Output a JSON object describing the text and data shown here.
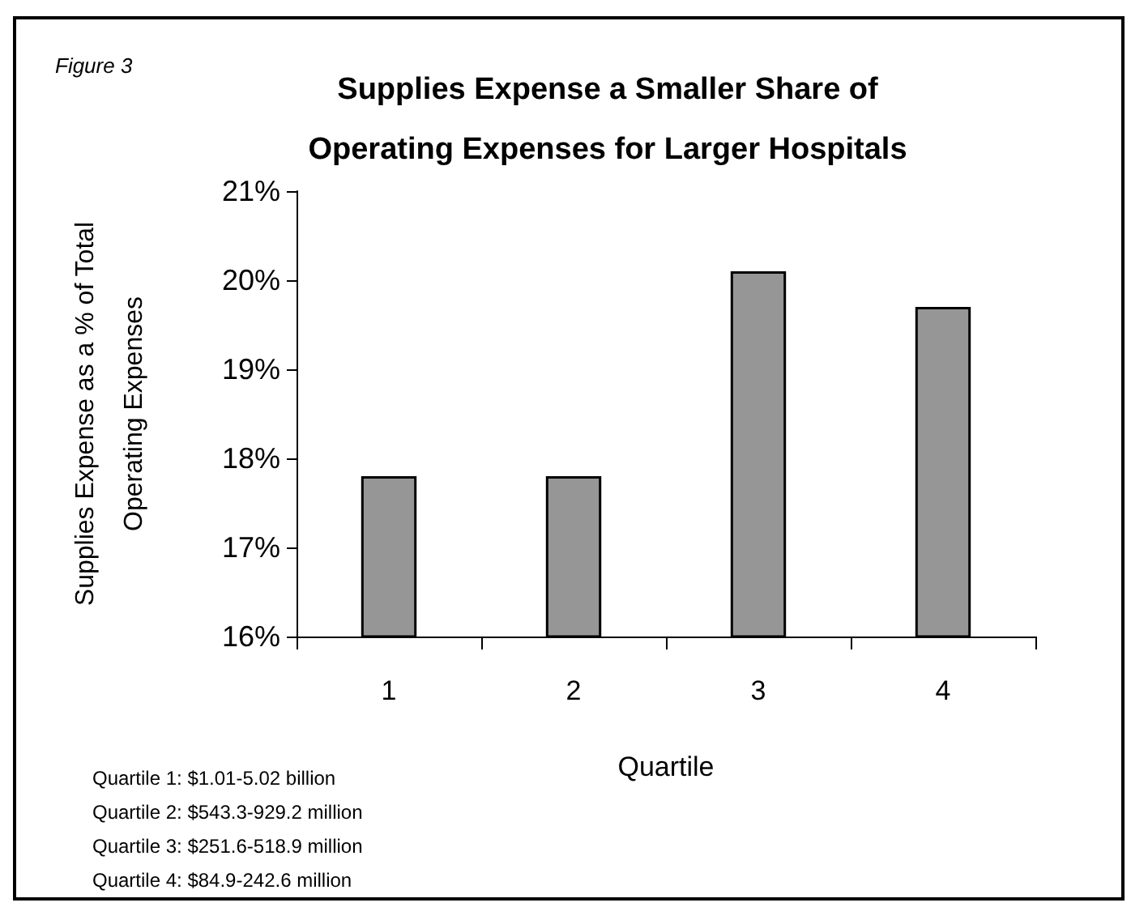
{
  "chart_data": {
    "type": "bar",
    "title": "Supplies Expense a Smaller Share of\nOperating Expenses for Larger Hospitals",
    "xlabel": "Quartile",
    "ylabel": "Supplies Expense as a % of Total\nOperating Expenses",
    "categories": [
      "1",
      "2",
      "3",
      "4"
    ],
    "series": [
      {
        "color": "#969696",
        "values": [
          17.8,
          17.8,
          20.1,
          19.7
        ]
      }
    ],
    "ylim": [
      16,
      21
    ],
    "yticks": [
      {
        "value": 16,
        "label": "16%"
      },
      {
        "value": 17,
        "label": "17%"
      },
      {
        "value": 18,
        "label": "18%"
      },
      {
        "value": 19,
        "label": "19%"
      },
      {
        "value": 20,
        "label": "20%"
      },
      {
        "value": 21,
        "label": "21%"
      }
    ],
    "grid": false,
    "annotations": [
      "Figure 3",
      "Quartile 1: $1.01-5.02 billion\nQuartile 2: $543.3-929.2 million\nQuartile 3: $251.6-518.9 million\nQuartile 4: $84.9-242.6 million"
    ]
  }
}
